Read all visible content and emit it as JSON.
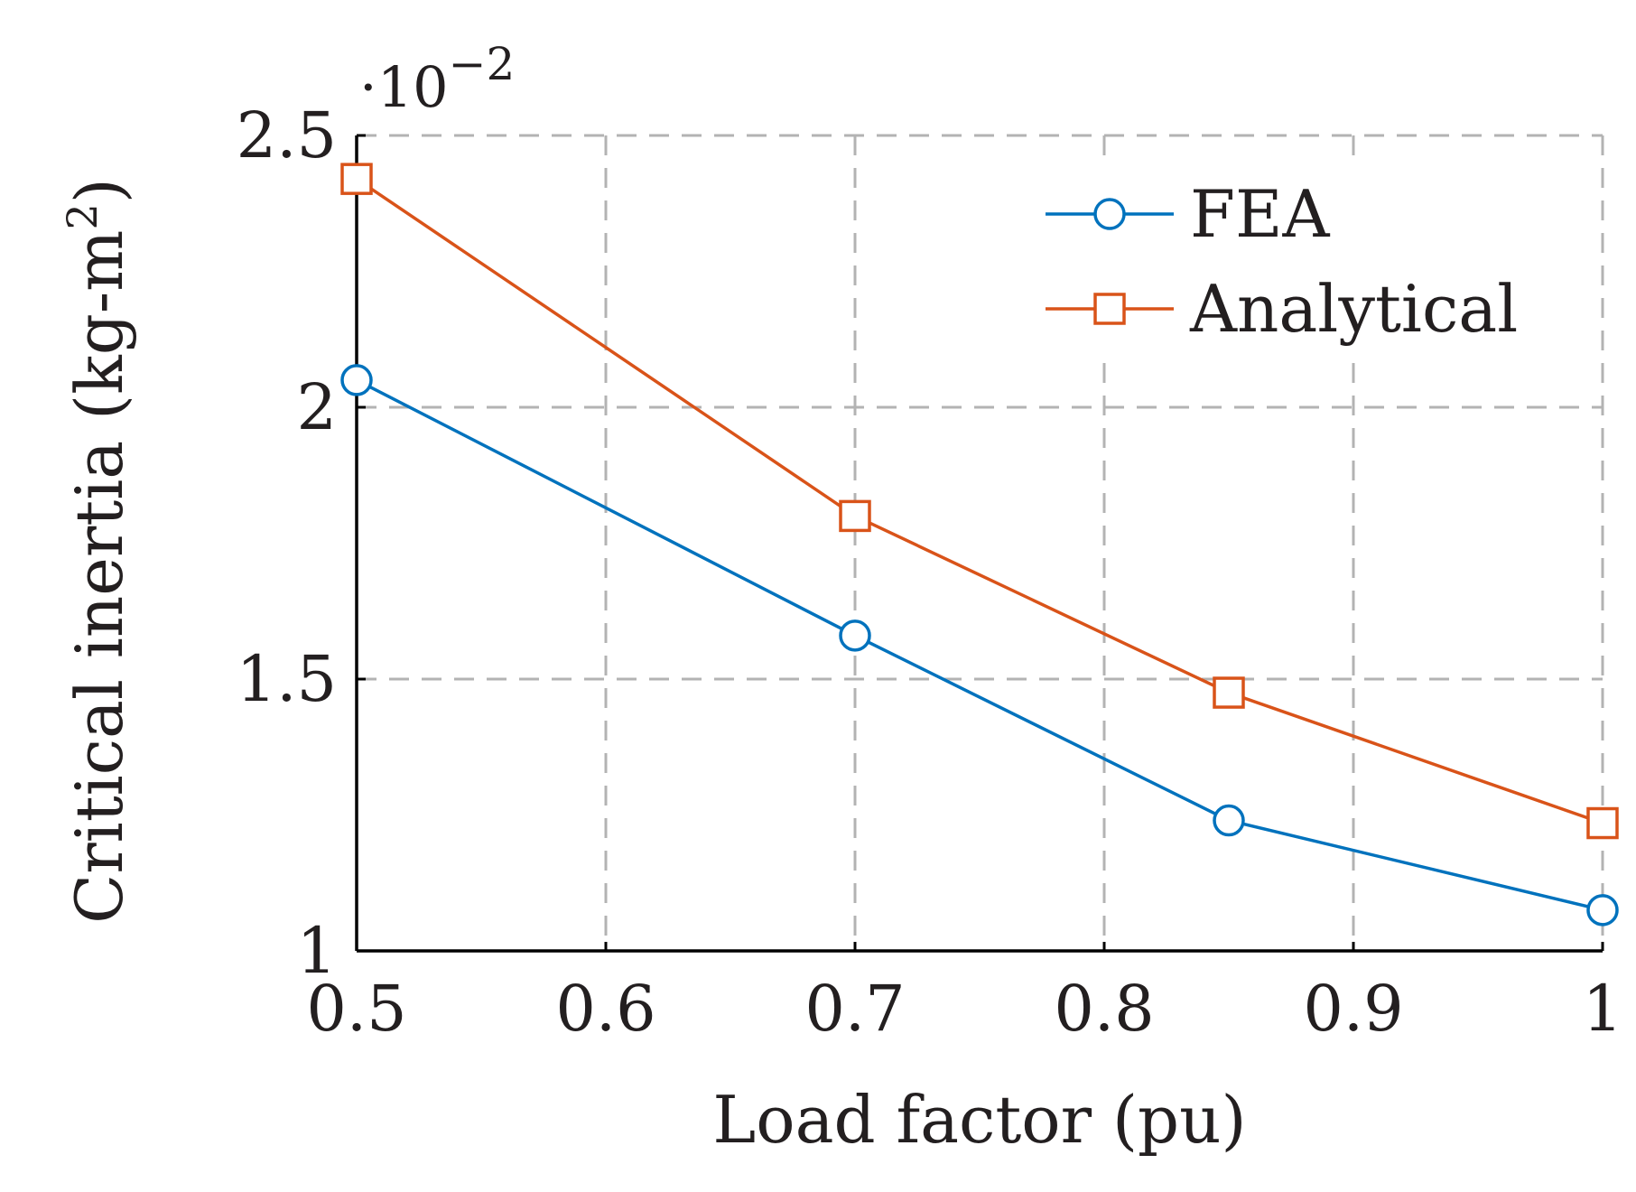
{
  "chart_data": {
    "type": "line",
    "title": "",
    "xlabel": "Load factor (pu)",
    "ylabel": "Critical inertia (kg-m²)",
    "ylabel_main": "Critical inertia (kg-m",
    "ylabel_sup": "2",
    "ylabel_close": ")",
    "y_multiplier_base": "·10",
    "y_multiplier_exp": "−2",
    "xlim": [
      0.5,
      1.0
    ],
    "ylim": [
      1.0,
      2.5
    ],
    "xticks": [
      0.5,
      0.6,
      0.7,
      0.8,
      0.9,
      1.0
    ],
    "xtick_labels": [
      "0.5",
      "0.6",
      "0.7",
      "0.8",
      "0.9",
      "1"
    ],
    "yticks": [
      1.0,
      1.5,
      2.0,
      2.5
    ],
    "ytick_labels": [
      "1",
      "1.5",
      "2",
      "2.5"
    ],
    "grid": true,
    "legend_position": "top-right",
    "series": [
      {
        "name": "FEA",
        "color": "#0072bd",
        "marker": "circle",
        "x": [
          0.5,
          0.7,
          0.85,
          1.0
        ],
        "y": [
          2.05,
          1.58,
          1.24,
          1.075
        ]
      },
      {
        "name": "Analytical",
        "color": "#d95319",
        "marker": "square",
        "x": [
          0.5,
          0.7,
          0.85,
          1.0
        ],
        "y": [
          2.42,
          1.8,
          1.475,
          1.235
        ]
      }
    ]
  }
}
